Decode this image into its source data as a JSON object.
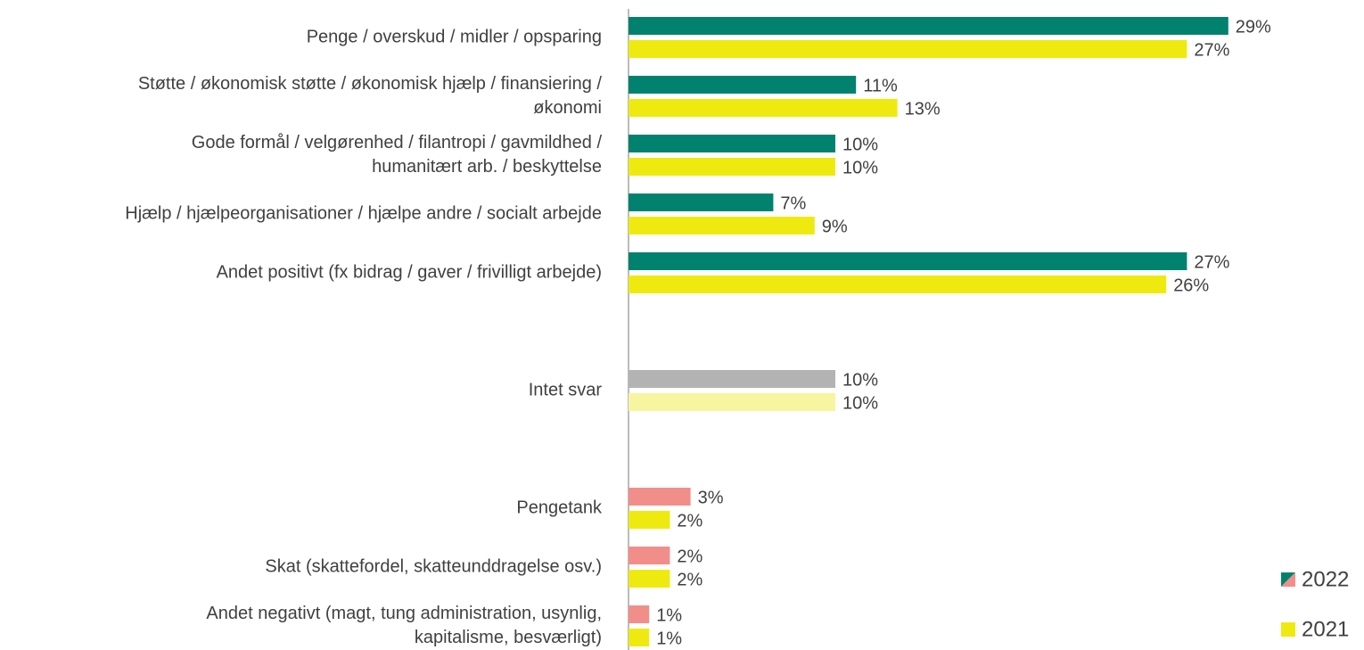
{
  "chart_data": {
    "type": "bar",
    "orientation": "horizontal",
    "categories": [
      "Penge / overskud / midler / opsparing",
      "Støtte / økonomisk støtte / økonomisk hjælp / finansiering /\nøkonomi",
      "Gode formål / velgørenhed / filantropi / gavmildhed /\nhumanitært arb. / beskyttelse",
      "Hjælp / hjælpeorganisationer / hjælpe andre / socialt arbejde",
      "Andet positivt (fx bidrag / gaver / frivilligt arbejde)",
      null,
      "Intet svar",
      null,
      "Pengetank",
      "Skat (skattefordel, skatteunddragelse osv.)",
      "Andet negativt (magt, tung administration, usynlig,\nkapitalisme, besværligt)"
    ],
    "series": [
      {
        "name": "2022",
        "color": "#00826f",
        "colors": [
          "#00826f",
          "#00826f",
          "#00826f",
          "#00826f",
          "#00826f",
          null,
          "#b3b3b3",
          null,
          "#f28e8a",
          "#f28e8a",
          "#f28e8a"
        ],
        "values": [
          29,
          11,
          10,
          7,
          27,
          null,
          10,
          null,
          3,
          2,
          1
        ],
        "value_labels": [
          "29%",
          "11%",
          "10%",
          "7%",
          "27%",
          null,
          "10%",
          null,
          "3%",
          "2%",
          "1%"
        ]
      },
      {
        "name": "2021",
        "color": "#eeea10",
        "colors": [
          "#eeea10",
          "#eeea10",
          "#eeea10",
          "#eeea10",
          "#eeea10",
          null,
          "#f7f5a0",
          null,
          "#eeea10",
          "#eeea10",
          "#eeea10"
        ],
        "values": [
          27,
          13,
          10,
          9,
          26,
          null,
          10,
          null,
          2,
          2,
          1
        ],
        "value_labels": [
          "27%",
          "13%",
          "10%",
          "9%",
          "26%",
          null,
          "10%",
          null,
          "2%",
          "2%",
          "1%"
        ]
      }
    ],
    "xlim": [
      0,
      30
    ],
    "legend": "bottom-right"
  }
}
